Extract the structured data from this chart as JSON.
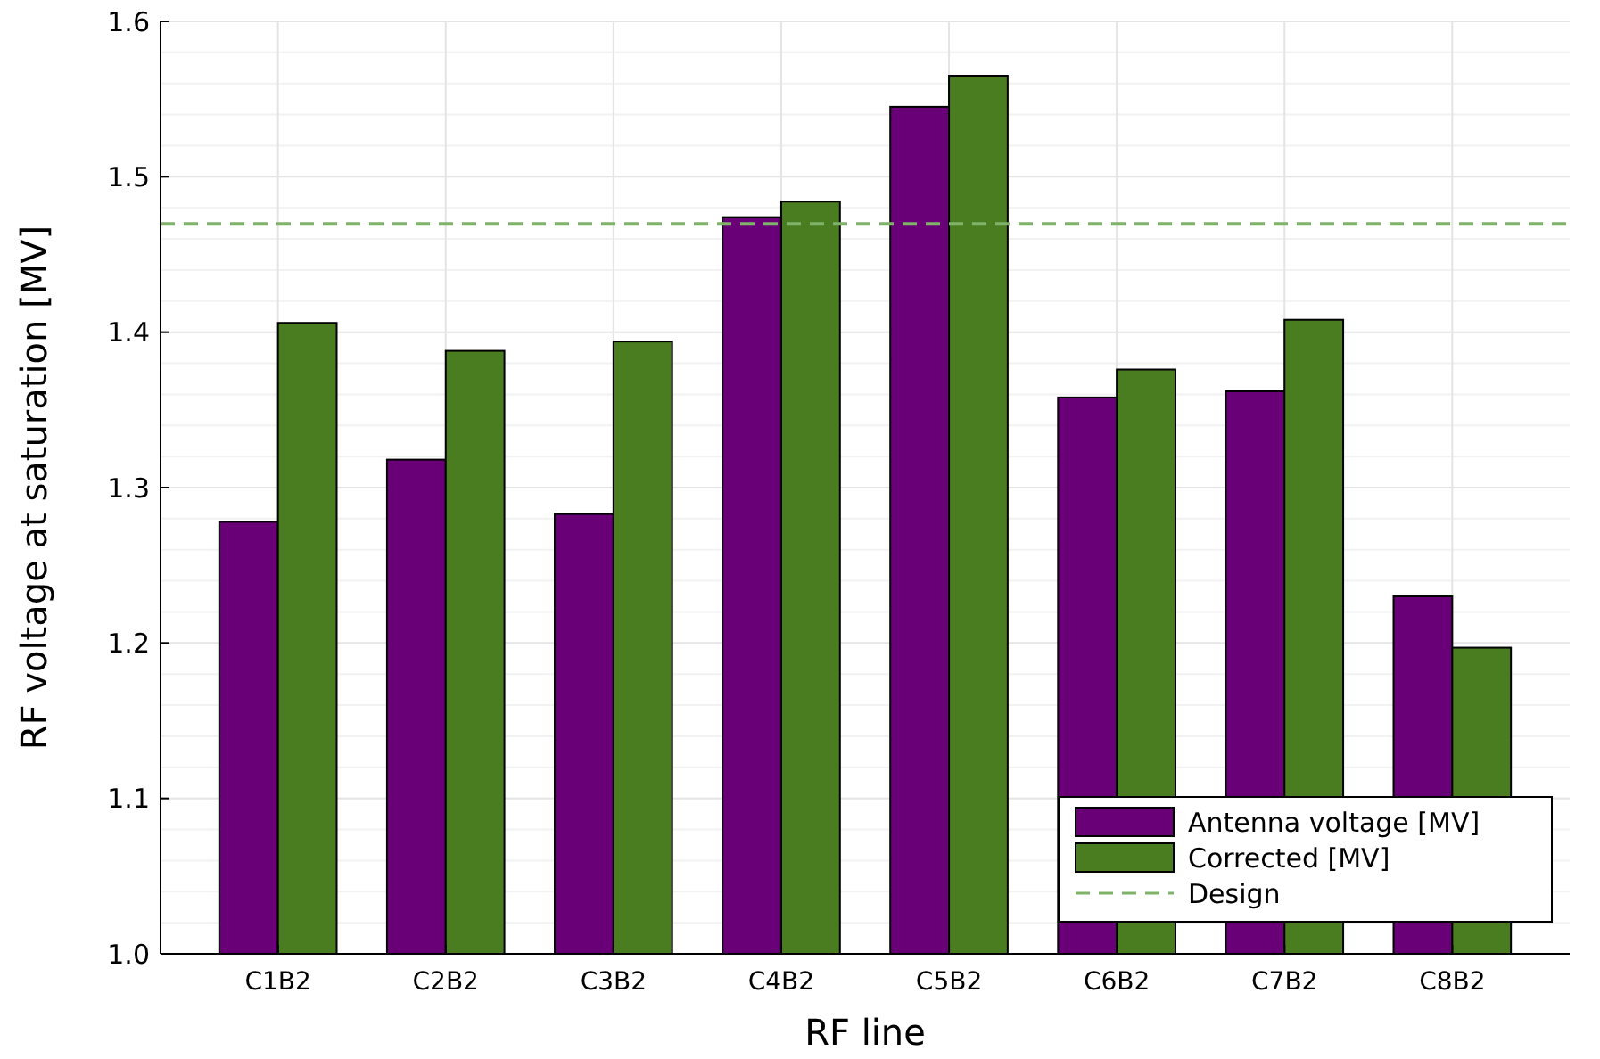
{
  "chart_data": {
    "type": "bar",
    "xlabel": "RF line",
    "ylabel": "RF voltage at saturation [MV]",
    "categories": [
      "C1B2",
      "C2B2",
      "C3B2",
      "C4B2",
      "C5B2",
      "C6B2",
      "C7B2",
      "C8B2"
    ],
    "series": [
      {
        "name": "Antenna voltage [MV]",
        "color": "#6a0078",
        "values": [
          1.278,
          1.318,
          1.283,
          1.474,
          1.545,
          1.358,
          1.362,
          1.23
        ]
      },
      {
        "name": "Corrected [MV]",
        "color": "#4a7d20",
        "values": [
          1.406,
          1.388,
          1.394,
          1.484,
          1.565,
          1.376,
          1.408,
          1.197
        ]
      }
    ],
    "ylim": [
      1.0,
      1.6
    ],
    "yticks": [
      {
        "value": 1.0,
        "label": "1.0"
      },
      {
        "value": 1.1,
        "label": "1.1"
      },
      {
        "value": 1.2,
        "label": "1.2"
      },
      {
        "value": 1.3,
        "label": "1.3"
      },
      {
        "value": 1.4,
        "label": "1.4"
      },
      {
        "value": 1.5,
        "label": "1.5"
      },
      {
        "value": 1.6,
        "label": "1.6"
      }
    ],
    "grid": true,
    "legend": "bottom right",
    "ref_lines": [
      {
        "axis": "y",
        "value": 1.47,
        "label": "Design",
        "color": "#7fb36a",
        "line_style": "dashed"
      }
    ]
  }
}
